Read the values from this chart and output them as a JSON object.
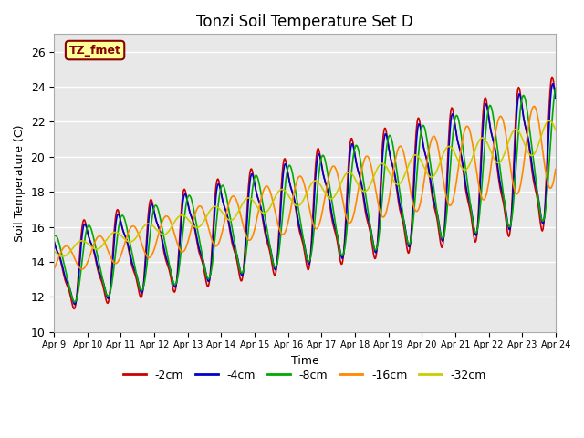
{
  "title": "Tonzi Soil Temperature Set D",
  "xlabel": "Time",
  "ylabel": "Soil Temperature (C)",
  "ylim": [
    10,
    27
  ],
  "xlim": [
    0,
    15
  ],
  "x_tick_labels": [
    "Apr 9",
    "Apr 10",
    "Apr 11",
    "Apr 12",
    "Apr 13",
    "Apr 14",
    "Apr 15",
    "Apr 16",
    "Apr 17",
    "Apr 18",
    "Apr 19",
    "Apr 20",
    "Apr 21",
    "Apr 22",
    "Apr 23",
    "Apr 24"
  ],
  "legend_labels": [
    "-2cm",
    "-4cm",
    "-8cm",
    "-16cm",
    "-32cm"
  ],
  "legend_colors": [
    "#cc0000",
    "#0000cc",
    "#00aa00",
    "#ff8800",
    "#cccc00"
  ],
  "line_widths": [
    1.2,
    1.2,
    1.2,
    1.2,
    1.2
  ],
  "label_text": "TZ_fmet",
  "label_bg": "#ffff99",
  "label_border": "#880000",
  "bg_color": "#e8e8e8",
  "fig_bg": "#ffffff",
  "title_fontsize": 12,
  "axis_fontsize": 9,
  "legend_fontsize": 9
}
